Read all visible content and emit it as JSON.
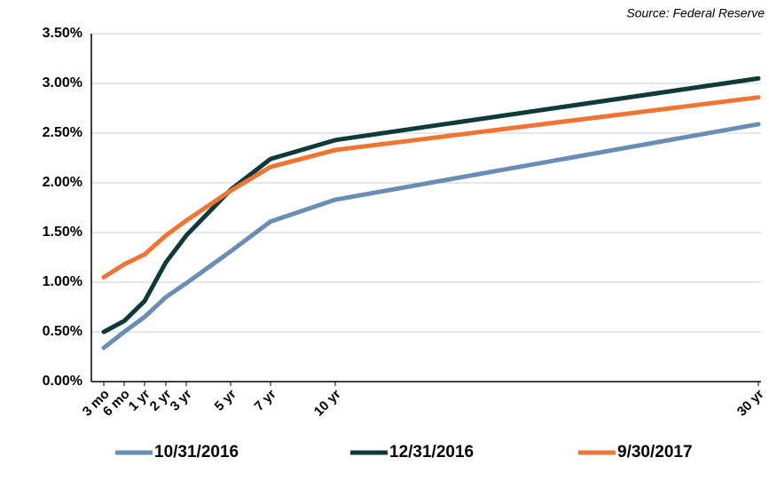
{
  "chart_data": {
    "type": "line",
    "source": "Source: Federal Reserve",
    "categories": [
      "3 mo",
      "6 mo",
      "1 yr",
      "2 yr",
      "3 yr",
      "5 yr",
      "7 yr",
      "10 yr",
      "30 yr"
    ],
    "series": [
      {
        "name": "10/31/2016",
        "color": "#6a8db5",
        "values": [
          0.34,
          0.5,
          0.65,
          0.85,
          0.99,
          1.31,
          1.61,
          1.83,
          2.59
        ]
      },
      {
        "name": "12/31/2016",
        "color": "#0e3a3a",
        "values": [
          0.5,
          0.61,
          0.81,
          1.2,
          1.47,
          1.93,
          2.24,
          2.43,
          3.05
        ]
      },
      {
        "name": "9/30/2017",
        "color": "#f07533",
        "values": [
          1.05,
          1.18,
          1.28,
          1.47,
          1.62,
          1.92,
          2.16,
          2.33,
          2.86
        ]
      }
    ],
    "ylim": [
      0,
      3.5
    ],
    "yticks": [
      {
        "value": 0,
        "label": "0.00%"
      },
      {
        "value": 0.5,
        "label": "0.50%"
      },
      {
        "value": 1,
        "label": "1.00%"
      },
      {
        "value": 1.5,
        "label": "1.50%"
      },
      {
        "value": 2,
        "label": "2.00%"
      },
      {
        "value": 2.5,
        "label": "2.50%"
      },
      {
        "value": 3,
        "label": "3.00%"
      },
      {
        "value": 3.5,
        "label": "3.50%"
      }
    ],
    "grid": true,
    "legend": "bottom"
  }
}
